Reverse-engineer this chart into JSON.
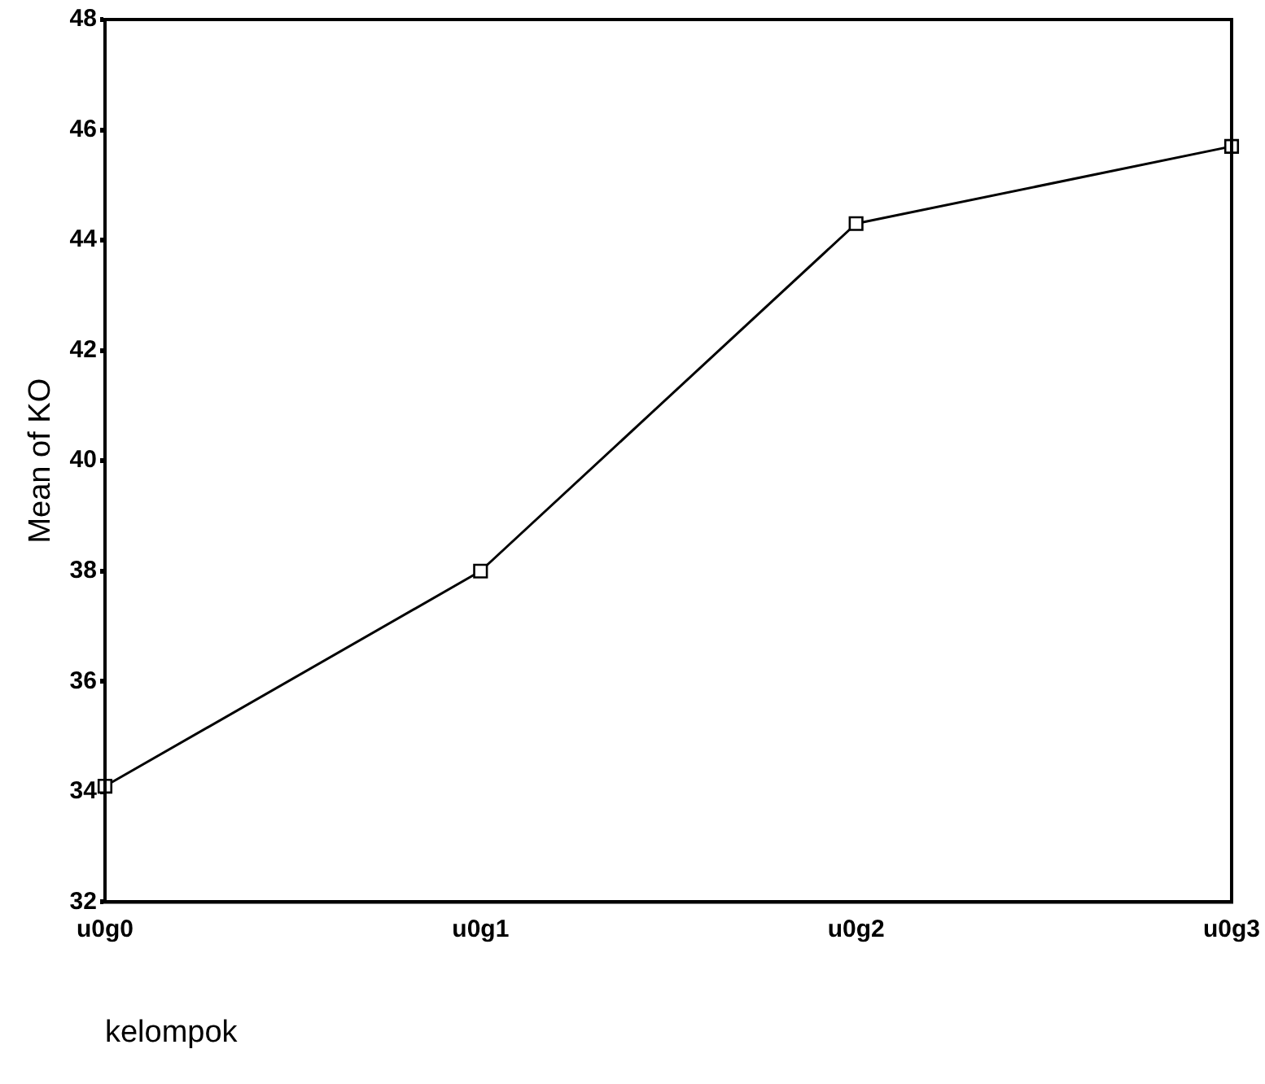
{
  "chart_data": {
    "type": "line",
    "xlabel": "kelompok",
    "ylabel": "Mean of KO",
    "categories": [
      "u0g0",
      "u0g1",
      "u0g2",
      "u0g3"
    ],
    "series": [
      {
        "color": "#000000",
        "values": [
          34.1,
          38.0,
          44.3,
          45.7
        ]
      }
    ],
    "ylim": [
      32,
      48
    ],
    "yticks": [
      32,
      34,
      36,
      38,
      40,
      42,
      44,
      46,
      48
    ],
    "grid": false,
    "legend": false,
    "marker": "square",
    "line_style": "solid"
  }
}
